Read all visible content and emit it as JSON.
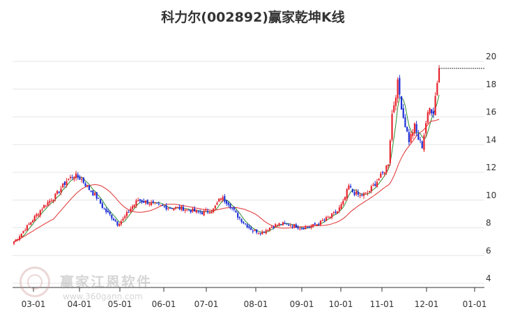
{
  "chart_data": {
    "type": "candlestick",
    "title": "科力尔(002892)赢家乾坤K线",
    "xlabel": "",
    "ylabel": "",
    "x_ticks": [
      "03-01",
      "04-01",
      "05-01",
      "06-01",
      "07-01",
      "08-01",
      "09-01",
      "10-01",
      "11-01",
      "12-01",
      "01-01"
    ],
    "y_ticks": [
      4,
      6,
      8,
      10,
      12,
      14,
      16,
      18,
      20
    ],
    "ylim": [
      4,
      20
    ],
    "grid": true,
    "anchors": [
      [
        0,
        7.0
      ],
      [
        4,
        7.6
      ],
      [
        10,
        8.6
      ],
      [
        16,
        9.6
      ],
      [
        22,
        10.3
      ],
      [
        28,
        11.4
      ],
      [
        32,
        11.8
      ],
      [
        36,
        11.5
      ],
      [
        40,
        10.8
      ],
      [
        44,
        10.2
      ],
      [
        48,
        9.3
      ],
      [
        52,
        8.8
      ],
      [
        55,
        8.3
      ],
      [
        58,
        8.6
      ],
      [
        62,
        9.4
      ],
      [
        66,
        10.0
      ],
      [
        72,
        9.8
      ],
      [
        80,
        9.5
      ],
      [
        90,
        9.4
      ],
      [
        96,
        9.2
      ],
      [
        100,
        9.1
      ],
      [
        106,
        9.3
      ],
      [
        110,
        10.2
      ],
      [
        114,
        9.8
      ],
      [
        118,
        9.0
      ],
      [
        122,
        8.4
      ],
      [
        127,
        7.8
      ],
      [
        132,
        7.7
      ],
      [
        137,
        8.1
      ],
      [
        142,
        8.3
      ],
      [
        148,
        8.2
      ],
      [
        153,
        8.0
      ],
      [
        158,
        8.1
      ],
      [
        163,
        8.4
      ],
      [
        168,
        8.8
      ],
      [
        172,
        9.2
      ],
      [
        175,
        9.8
      ],
      [
        178,
        11.0
      ],
      [
        180,
        10.6
      ],
      [
        184,
        10.3
      ],
      [
        188,
        10.5
      ],
      [
        192,
        11.2
      ],
      [
        196,
        11.9
      ],
      [
        199,
        12.7
      ],
      [
        201,
        16.2
      ],
      [
        204,
        18.4
      ],
      [
        207,
        16.0
      ],
      [
        210,
        14.3
      ],
      [
        213,
        15.3
      ],
      [
        215,
        14.4
      ],
      [
        217,
        13.9
      ],
      [
        219,
        15.6
      ],
      [
        221,
        16.6
      ],
      [
        223,
        16.4
      ],
      [
        225,
        18.6
      ],
      [
        226,
        19.5
      ]
    ],
    "series": [
      {
        "name": "",
        "color": "#2e8b2e",
        "window": 5
      },
      {
        "name": "",
        "color": "#e03030",
        "window": 22
      }
    ],
    "up_color": "#e8232d",
    "down_color": "#1c2fd6",
    "last_value": 19.5
  }
}
